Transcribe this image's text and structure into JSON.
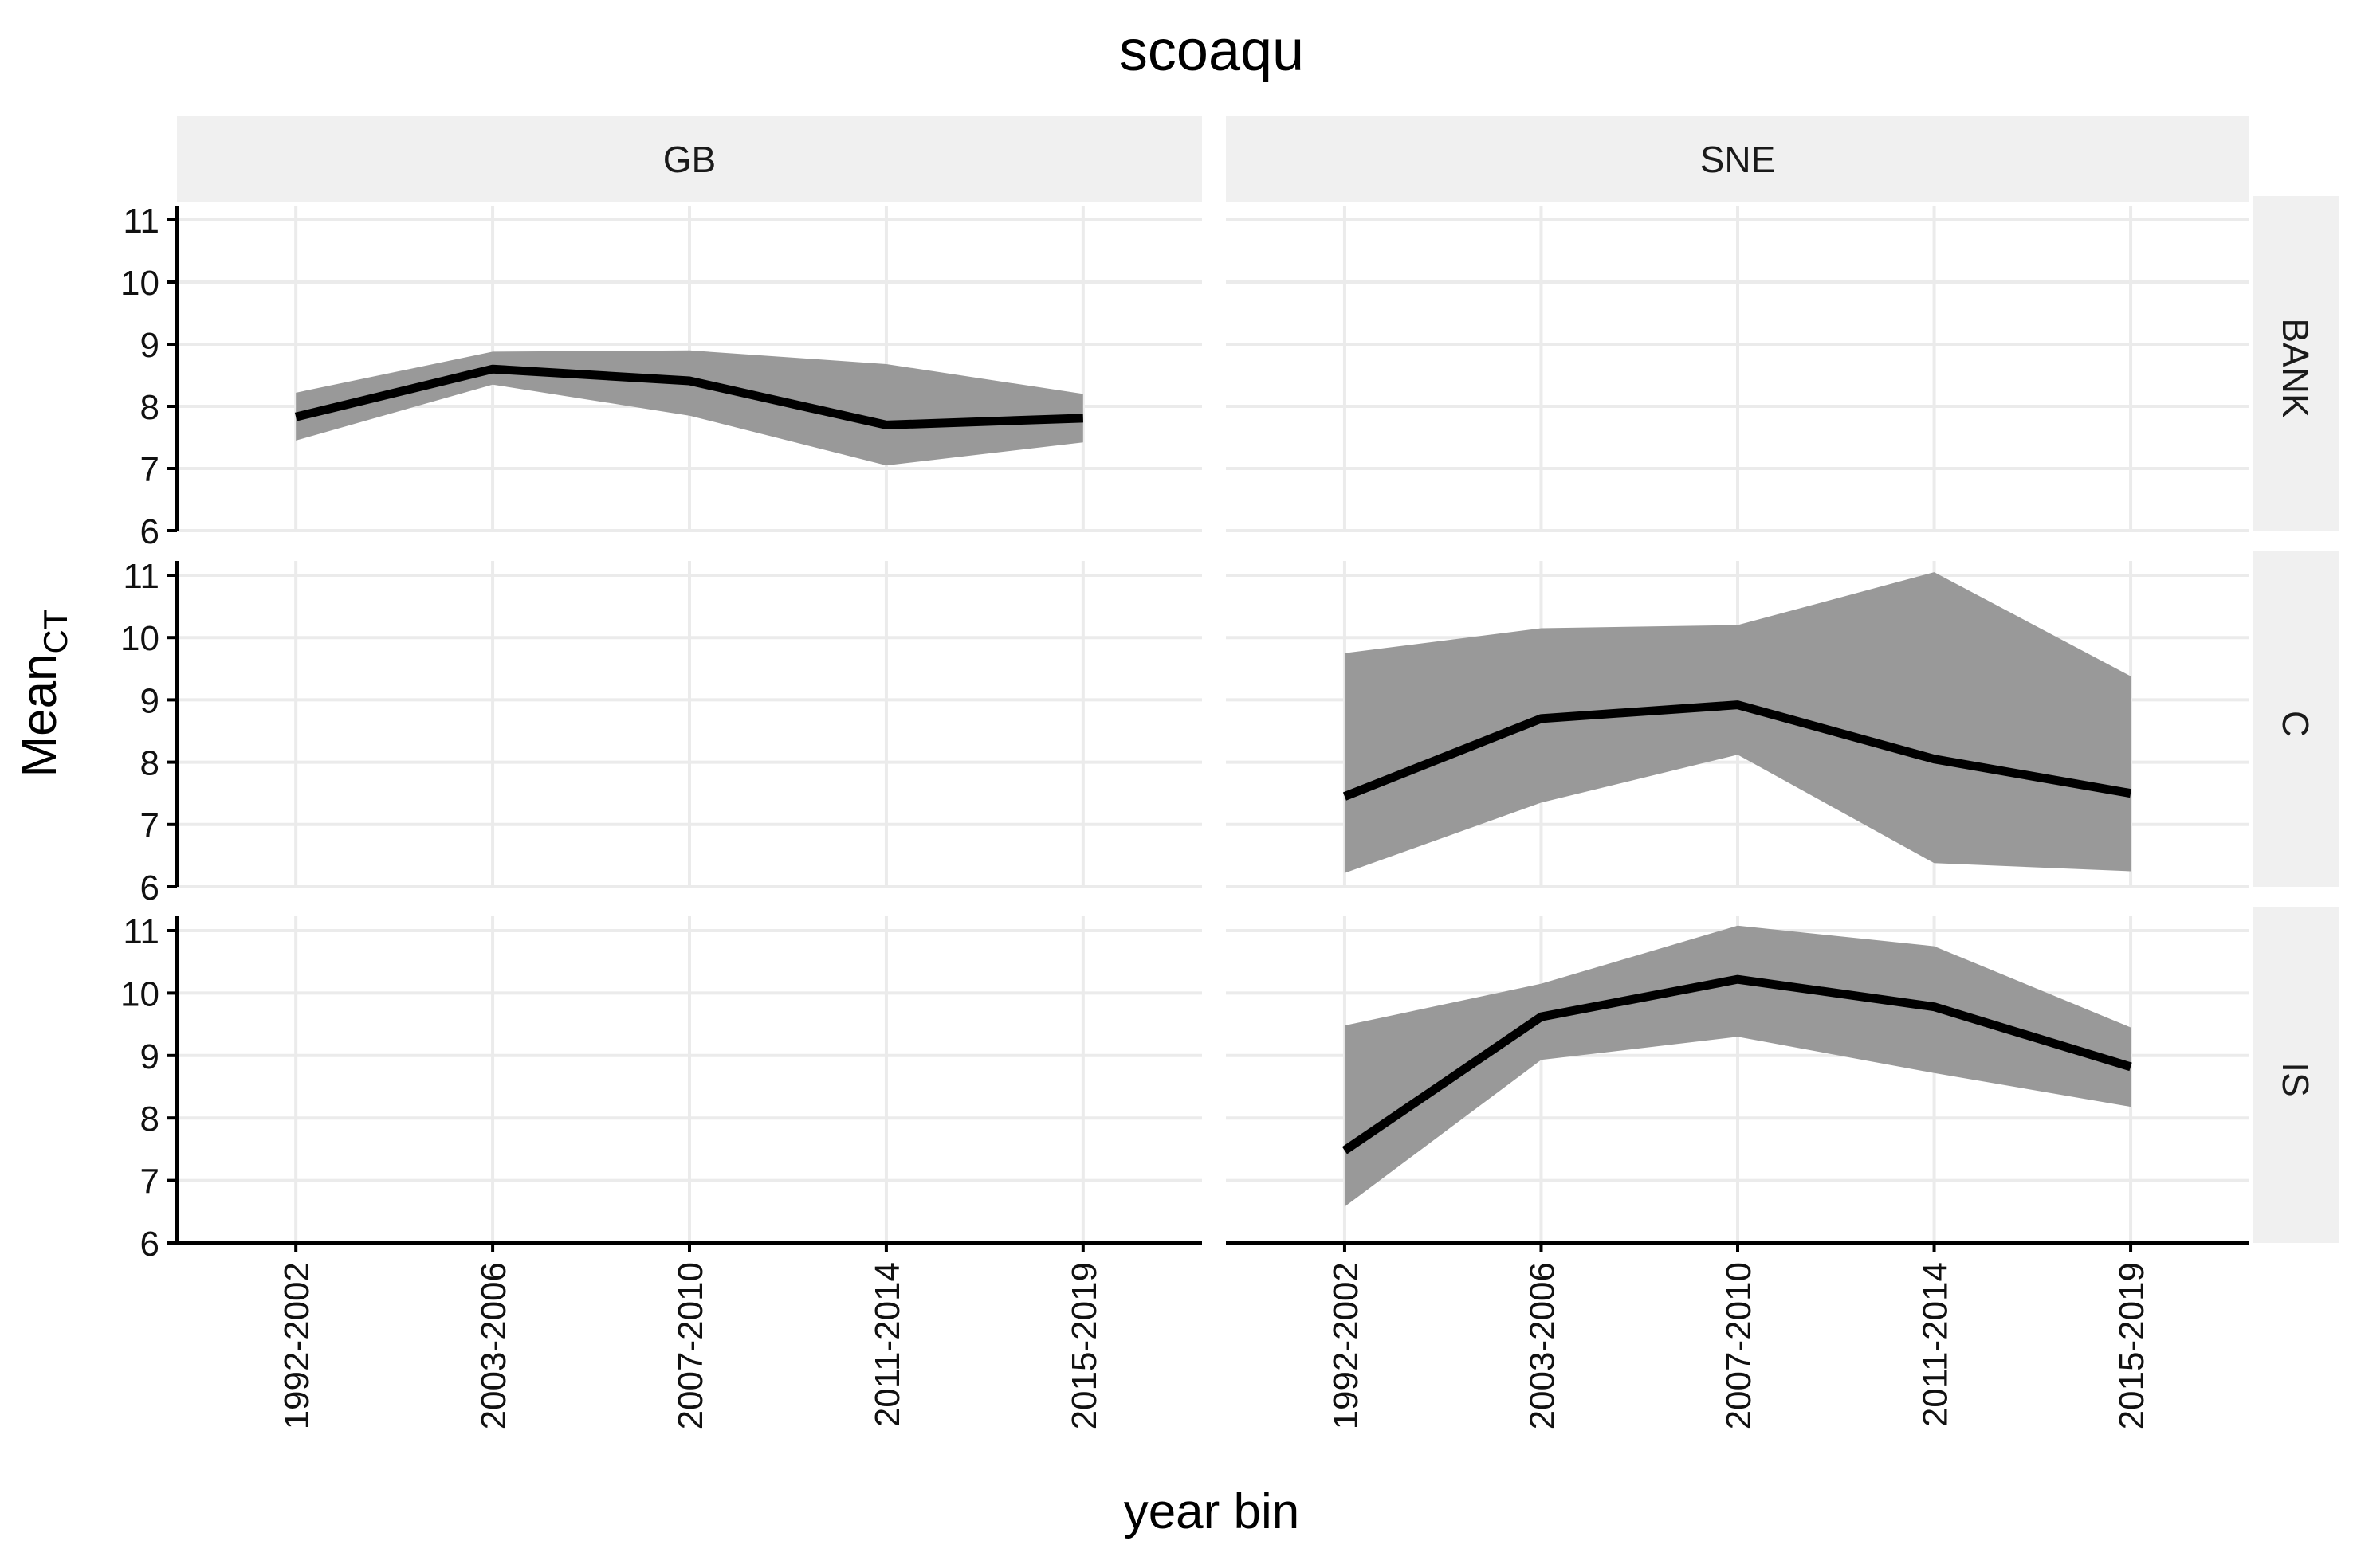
{
  "chart_data": {
    "type": "line",
    "title": "scoaqu",
    "xlabel": "year bin",
    "ylabel": {
      "main": "Mean",
      "subscript": "CT"
    },
    "categories": [
      "1992-2002",
      "2003-2006",
      "2007-2010",
      "2011-2014",
      "2015-2019"
    ],
    "facet_columns": [
      "GB",
      "SNE"
    ],
    "facet_rows": [
      "BANK",
      "C",
      "IS"
    ],
    "ylim": [
      6,
      11
    ],
    "yticks": [
      6,
      7,
      8,
      9,
      10,
      11
    ],
    "grid": true,
    "colors": {
      "line": "#000000",
      "ribbon": "#999999",
      "strip": "#f0f0f0",
      "gridline": "#ebebeb",
      "axis": "#000000"
    },
    "panels": [
      {
        "row": "BANK",
        "col": "GB",
        "mean": [
          7.83,
          8.6,
          8.41,
          7.7,
          7.81
        ],
        "lower": [
          7.45,
          8.35,
          7.85,
          7.05,
          7.42
        ],
        "upper": [
          8.22,
          8.88,
          8.9,
          8.68,
          8.2
        ]
      },
      {
        "row": "BANK",
        "col": "SNE",
        "mean": [],
        "lower": [],
        "upper": []
      },
      {
        "row": "C",
        "col": "GB",
        "mean": [],
        "lower": [],
        "upper": []
      },
      {
        "row": "C",
        "col": "SNE",
        "mean": [
          7.45,
          8.7,
          8.92,
          8.05,
          7.5
        ],
        "lower": [
          6.22,
          7.35,
          8.12,
          6.38,
          6.25
        ],
        "upper": [
          9.75,
          10.15,
          10.2,
          11.05,
          9.38
        ]
      },
      {
        "row": "IS",
        "col": "GB",
        "mean": [],
        "lower": [],
        "upper": []
      },
      {
        "row": "IS",
        "col": "SNE",
        "mean": [
          7.48,
          9.62,
          10.22,
          9.78,
          8.82
        ],
        "lower": [
          6.58,
          8.93,
          9.3,
          8.72,
          8.18
        ],
        "upper": [
          9.48,
          10.15,
          11.08,
          10.75,
          9.45
        ]
      }
    ]
  }
}
